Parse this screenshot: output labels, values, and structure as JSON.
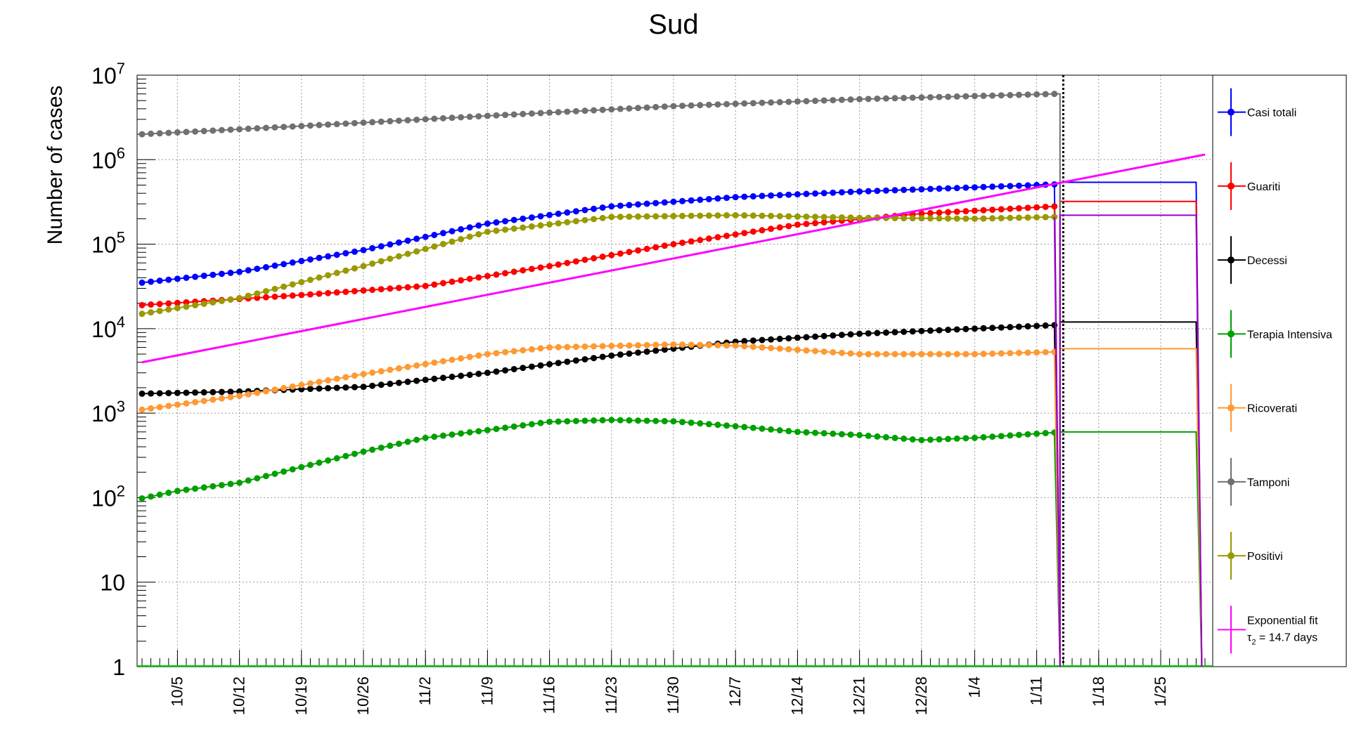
{
  "chart_data": {
    "type": "line",
    "title": "Sud",
    "ylabel": "Number of cases",
    "xlabel": "",
    "y_scale": "log",
    "ylim": [
      1,
      10000000
    ],
    "grid": true,
    "legend_position": "right",
    "x_tick_labels": [
      "10/5",
      "10/12",
      "10/19",
      "10/26",
      "11/2",
      "11/9",
      "11/16",
      "11/23",
      "11/30",
      "12/7",
      "12/14",
      "12/21",
      "12/28",
      "1/4",
      "1/11",
      "1/18",
      "1/25"
    ],
    "y_tick_labels": [
      {
        "value": 1,
        "base": "1",
        "exp": ""
      },
      {
        "value": 10,
        "base": "10",
        "exp": ""
      },
      {
        "value": 100,
        "base": "10",
        "exp": "2"
      },
      {
        "value": 1000,
        "base": "10",
        "exp": "3"
      },
      {
        "value": 10000,
        "base": "10",
        "exp": "4"
      },
      {
        "value": 100000,
        "base": "10",
        "exp": "5"
      },
      {
        "value": 1000000,
        "base": "10",
        "exp": "6"
      },
      {
        "value": 10000000,
        "base": "10",
        "exp": "7"
      }
    ],
    "x_range": [
      "10/1",
      "1/30"
    ],
    "data_end_date": "1/13",
    "projection_end_date": "1/29",
    "marker_line_date": "1/14",
    "series": [
      {
        "name": "Casi totali",
        "color": "#0000ff",
        "knots": [
          [
            "10/1",
            35000
          ],
          [
            "10/12",
            47000
          ],
          [
            "10/26",
            85000
          ],
          [
            "11/9",
            175000
          ],
          [
            "11/23",
            280000
          ],
          [
            "12/7",
            360000
          ],
          [
            "12/21",
            420000
          ],
          [
            "1/4",
            470000
          ],
          [
            "1/13",
            510000
          ]
        ],
        "projection": 540000
      },
      {
        "name": "Guariti",
        "color": "#ff0000",
        "knots": [
          [
            "10/1",
            19000
          ],
          [
            "10/19",
            25000
          ],
          [
            "11/2",
            32000
          ],
          [
            "11/16",
            55000
          ],
          [
            "11/30",
            100000
          ],
          [
            "12/14",
            170000
          ],
          [
            "12/28",
            230000
          ],
          [
            "1/13",
            280000
          ]
        ],
        "projection": 320000
      },
      {
        "name": "Decessi",
        "color": "#000000",
        "knots": [
          [
            "10/1",
            1700
          ],
          [
            "10/12",
            1800
          ],
          [
            "10/26",
            2050
          ],
          [
            "11/9",
            3000
          ],
          [
            "11/23",
            4800
          ],
          [
            "12/7",
            7000
          ],
          [
            "12/21",
            8700
          ],
          [
            "1/4",
            10000
          ],
          [
            "1/13",
            11000
          ]
        ],
        "projection": 12000
      },
      {
        "name": "Terapia Intensiva",
        "color": "#00a000",
        "knots": [
          [
            "10/1",
            98
          ],
          [
            "10/5",
            120
          ],
          [
            "10/12",
            150
          ],
          [
            "10/19",
            230
          ],
          [
            "10/26",
            350
          ],
          [
            "11/2",
            510
          ],
          [
            "11/9",
            630
          ],
          [
            "11/16",
            790
          ],
          [
            "11/23",
            830
          ],
          [
            "11/30",
            800
          ],
          [
            "12/7",
            700
          ],
          [
            "12/14",
            600
          ],
          [
            "12/21",
            550
          ],
          [
            "12/28",
            480
          ],
          [
            "1/4",
            510
          ],
          [
            "1/13",
            590
          ]
        ],
        "projection": 600
      },
      {
        "name": "Ricoverati",
        "color": "#ff9933",
        "knots": [
          [
            "10/1",
            1100
          ],
          [
            "10/12",
            1600
          ],
          [
            "10/26",
            2900
          ],
          [
            "11/9",
            5000
          ],
          [
            "11/16",
            6000
          ],
          [
            "11/30",
            6500
          ],
          [
            "12/7",
            6300
          ],
          [
            "12/21",
            5000
          ],
          [
            "1/4",
            5000
          ],
          [
            "1/13",
            5300
          ]
        ],
        "projection": 5800
      },
      {
        "name": "Tamponi",
        "color": "#707070",
        "knots": [
          [
            "10/1",
            2000000
          ],
          [
            "10/19",
            2500000
          ],
          [
            "11/9",
            3300000
          ],
          [
            "11/30",
            4300000
          ],
          [
            "12/21",
            5200000
          ],
          [
            "1/13",
            6000000
          ]
        ],
        "projection": null
      },
      {
        "name": "Positivi",
        "color": "#999900",
        "knots": [
          [
            "10/1",
            15000
          ],
          [
            "10/12",
            23000
          ],
          [
            "10/26",
            55000
          ],
          [
            "11/9",
            140000
          ],
          [
            "11/23",
            210000
          ],
          [
            "12/7",
            220000
          ],
          [
            "12/21",
            205000
          ],
          [
            "1/4",
            200000
          ],
          [
            "1/13",
            210000
          ]
        ],
        "projection": 220000,
        "projection_color": "#9900cc"
      },
      {
        "name": "Exponential fit",
        "color": "#ff00ff",
        "fit": true,
        "line": [
          [
            "10/1",
            4000
          ],
          [
            "1/30",
            1150000
          ]
        ]
      }
    ],
    "legend_fit_label": {
      "tau": "τ",
      "sub": "2",
      "rest": " = 14.7 days"
    }
  }
}
